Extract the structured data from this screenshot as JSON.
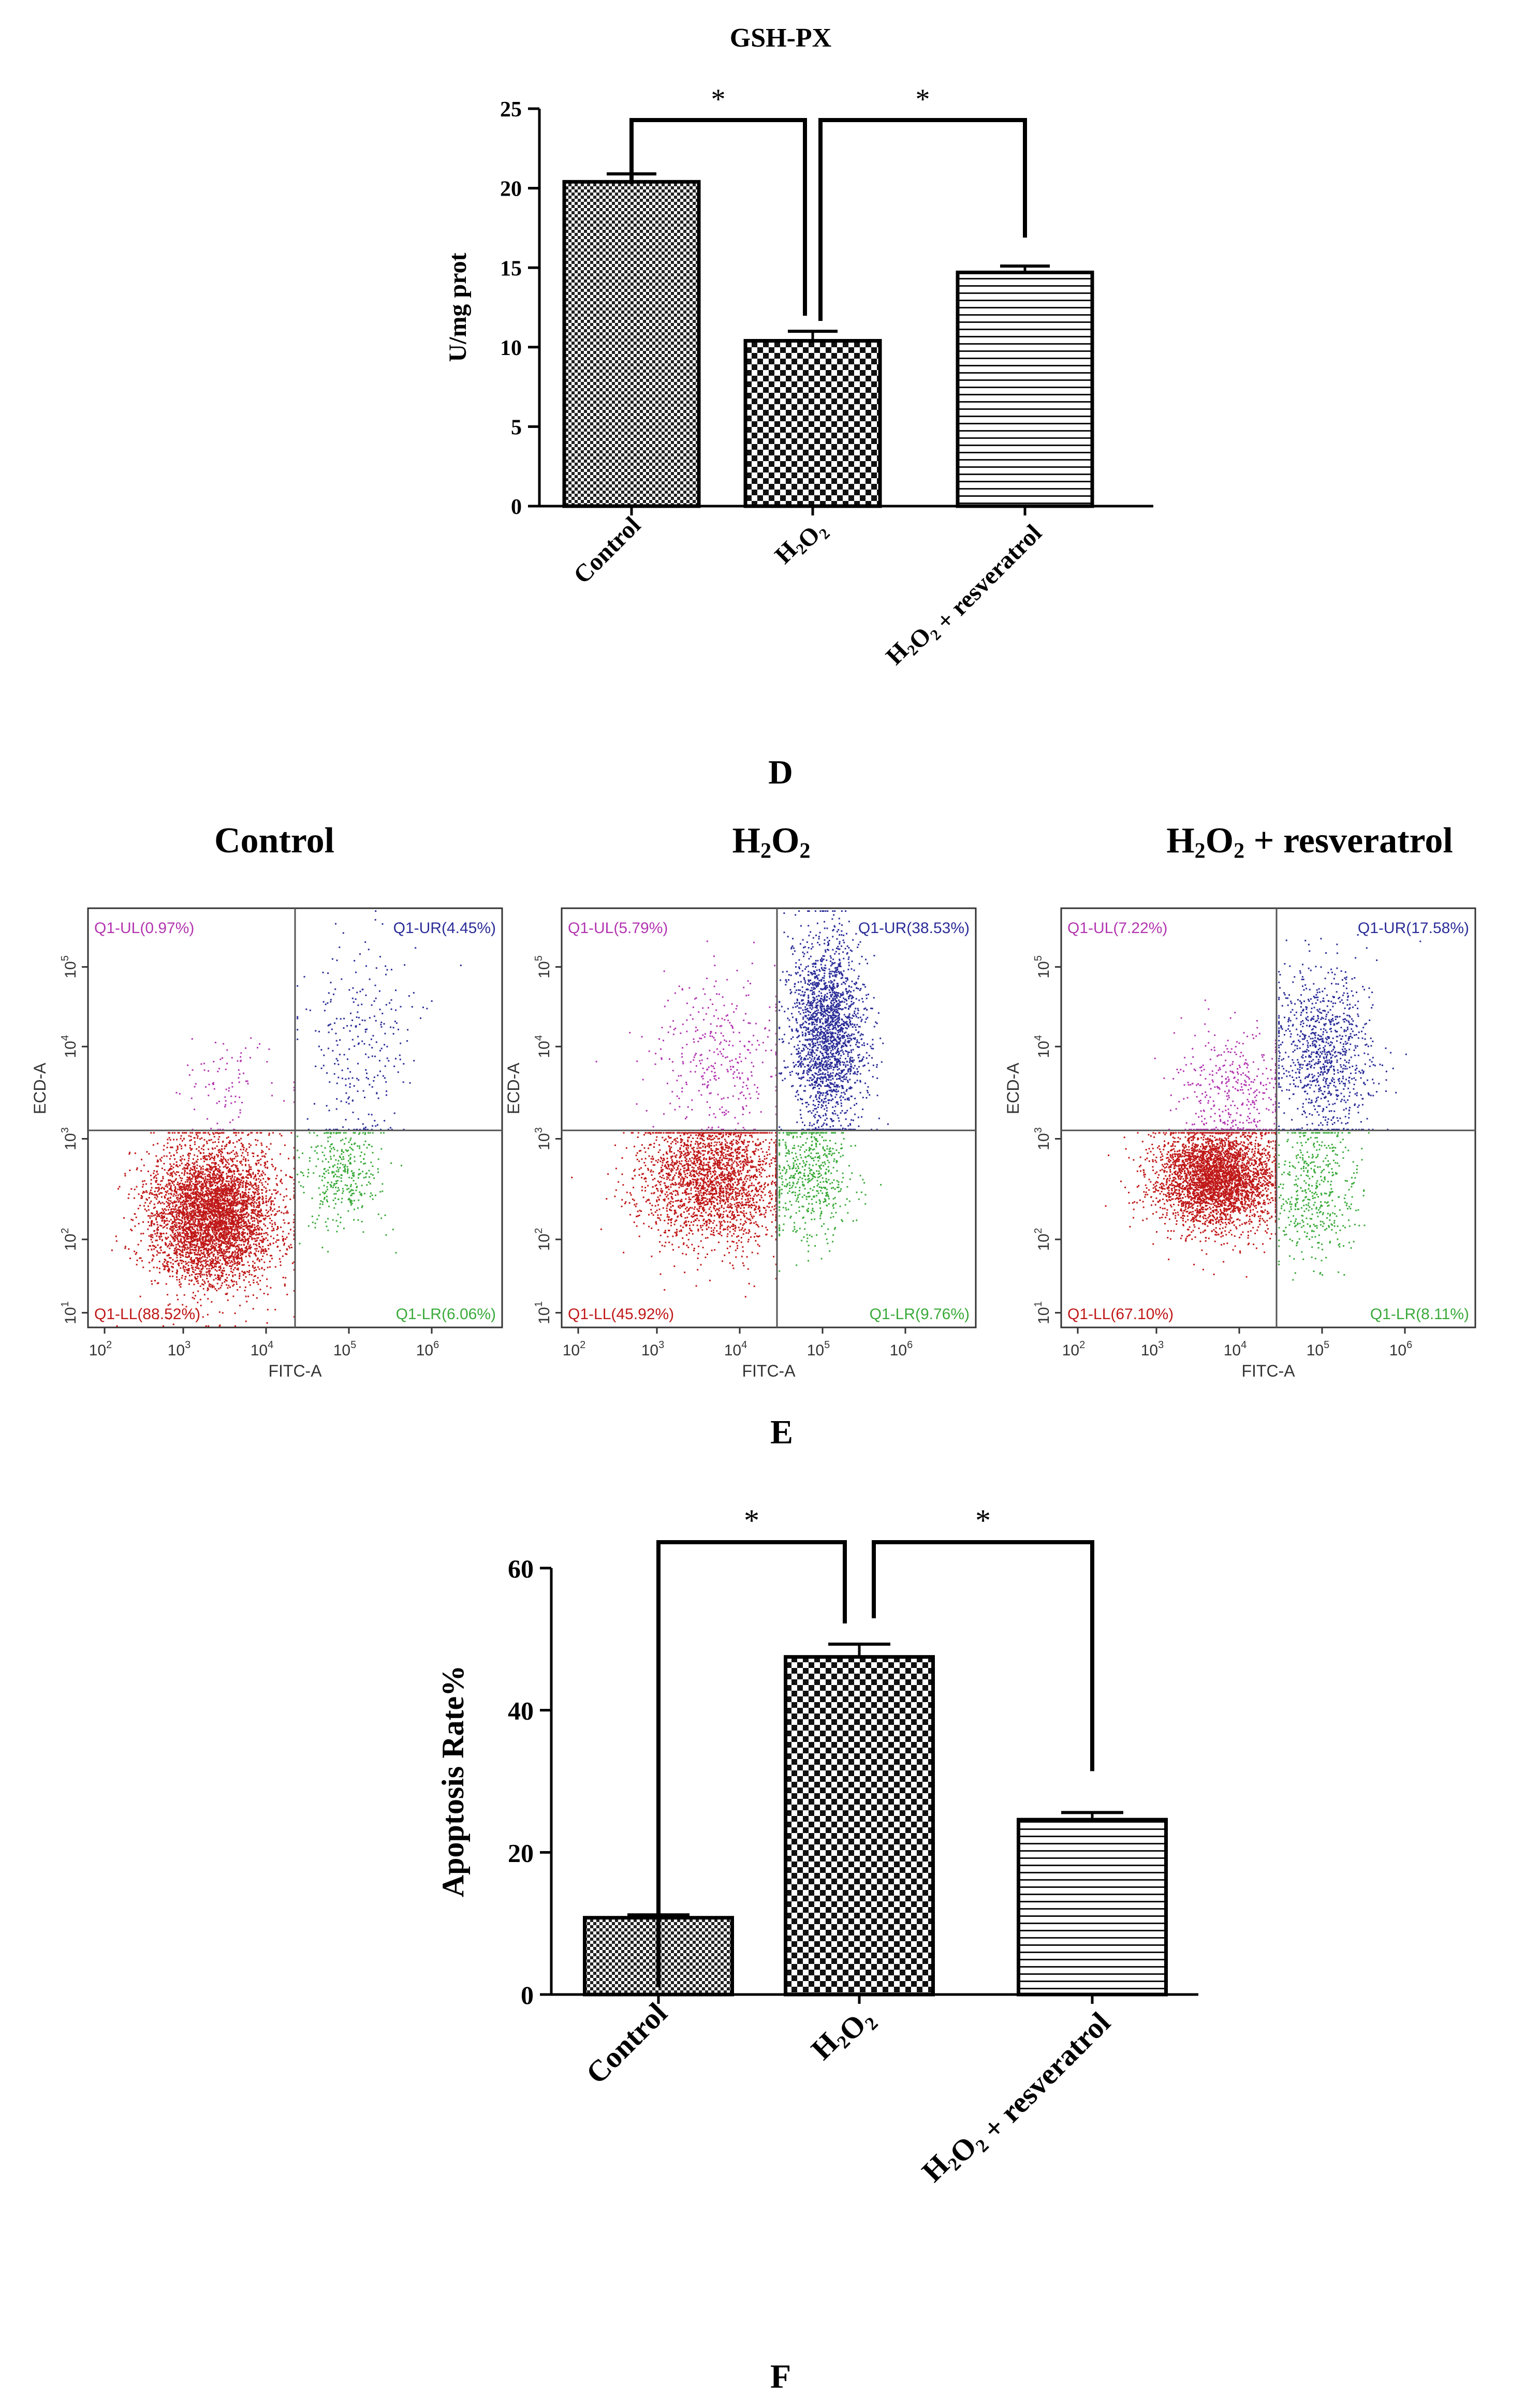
{
  "colors": {
    "ul": "#b236b0",
    "ur": "#2b2d98",
    "ll": "#c01818",
    "lr": "#3aaa3a",
    "axis": "#000000",
    "flow_axis": "#333333"
  },
  "chart_data": [
    {
      "type": "bar",
      "panel": "D",
      "title": "GSH-PX",
      "ylabel": "U/mg prot",
      "xlabel": "",
      "ylim": [
        0,
        25
      ],
      "yticks": [
        "0",
        "5",
        "10",
        "15",
        "20",
        "25"
      ],
      "categories": [
        "Control",
        "H2O2",
        "H2O2 + resveratrol"
      ],
      "values": [
        20.4,
        10.4,
        14.7
      ],
      "errors": [
        0.5,
        0.6,
        0.4
      ],
      "patterns": [
        "fine-check",
        "coarse-check",
        "horizontal-lines"
      ],
      "significance": [
        {
          "from": 0,
          "to": 1,
          "label": "*"
        },
        {
          "from": 1,
          "to": 2,
          "label": "*"
        }
      ]
    },
    {
      "type": "scatter",
      "panel": "E",
      "plot": "flow-cytometry",
      "title": "Control",
      "xlabel": "FITC-A",
      "ylabel": "ECD-A",
      "axis_scale": "log",
      "xticks": [
        "10",
        "10",
        "10",
        "10",
        "10"
      ],
      "xtick_exps": [
        "2",
        "3",
        "4",
        "5",
        "6"
      ],
      "yticks": [
        "10",
        "10",
        "10",
        "10",
        "10"
      ],
      "ytick_exps": [
        "1",
        "2",
        "3",
        "4",
        "5"
      ],
      "quadrants": {
        "UL": "Q1-UL(0.97%)",
        "UR": "Q1-UR(4.45%)",
        "LL": "Q1-LL(88.52%)",
        "LR": "Q1-LR(6.06%)"
      },
      "populations": {
        "UL": 0.97,
        "UR": 4.45,
        "LL": 88.52,
        "LR": 6.06
      }
    },
    {
      "type": "scatter",
      "panel": "E",
      "plot": "flow-cytometry",
      "title": "H2O2",
      "xlabel": "FITC-A",
      "ylabel": "ECD-A",
      "axis_scale": "log",
      "xticks": [
        "10",
        "10",
        "10",
        "10",
        "10"
      ],
      "xtick_exps": [
        "2",
        "3",
        "4",
        "5",
        "6"
      ],
      "yticks": [
        "10",
        "10",
        "10",
        "10",
        "10"
      ],
      "ytick_exps": [
        "1",
        "2",
        "3",
        "4",
        "5"
      ],
      "quadrants": {
        "UL": "Q1-UL(5.79%)",
        "UR": "Q1-UR(38.53%)",
        "LL": "Q1-LL(45.92%)",
        "LR": "Q1-LR(9.76%)"
      },
      "populations": {
        "UL": 5.79,
        "UR": 38.53,
        "LL": 45.92,
        "LR": 9.76
      }
    },
    {
      "type": "scatter",
      "panel": "E",
      "plot": "flow-cytometry",
      "title": "H2O2 + resveratrol",
      "xlabel": "FITC-A",
      "ylabel": "ECD-A",
      "axis_scale": "log",
      "xticks": [
        "10",
        "10",
        "10",
        "10",
        "10"
      ],
      "xtick_exps": [
        "2",
        "3",
        "4",
        "5",
        "6"
      ],
      "yticks": [
        "10",
        "10",
        "10",
        "10",
        "10"
      ],
      "ytick_exps": [
        "1",
        "2",
        "3",
        "4",
        "5"
      ],
      "quadrants": {
        "UL": "Q1-UL(7.22%)",
        "UR": "Q1-UR(17.58%)",
        "LL": "Q1-LL(67.10%)",
        "LR": "Q1-LR(8.11%)"
      },
      "populations": {
        "UL": 7.22,
        "UR": 17.58,
        "LL": 67.1,
        "LR": 8.11
      }
    },
    {
      "type": "bar",
      "panel": "F",
      "title": "",
      "ylabel": "Apoptosis Rate%",
      "xlabel": "",
      "ylim": [
        0,
        60
      ],
      "yticks": [
        "0",
        "20",
        "40",
        "60"
      ],
      "categories": [
        "Control",
        "H2O2",
        "H2O2 + resveratrol"
      ],
      "values": [
        10.8,
        47.5,
        24.6
      ],
      "errors": [
        0.4,
        1.8,
        1.0
      ],
      "patterns": [
        "fine-check",
        "coarse-check",
        "horizontal-lines"
      ],
      "significance": [
        {
          "from": 0,
          "to": 1,
          "label": "*"
        },
        {
          "from": 1,
          "to": 2,
          "label": "*"
        }
      ]
    }
  ],
  "labels": {
    "panel_d": "D",
    "panel_e": "E",
    "panel_f": "F",
    "flow_title_1": "Control",
    "flow_title_2_base": "H",
    "flow_title_2_sub1": "2",
    "flow_title_2_mid": "O",
    "flow_title_2_sub2": "2",
    "flow_title_3_base": "H",
    "flow_title_3_sub1": "2",
    "flow_title_3_mid": "O",
    "flow_title_3_sub2": "2",
    "flow_title_3_tail": " + resveratrol"
  }
}
